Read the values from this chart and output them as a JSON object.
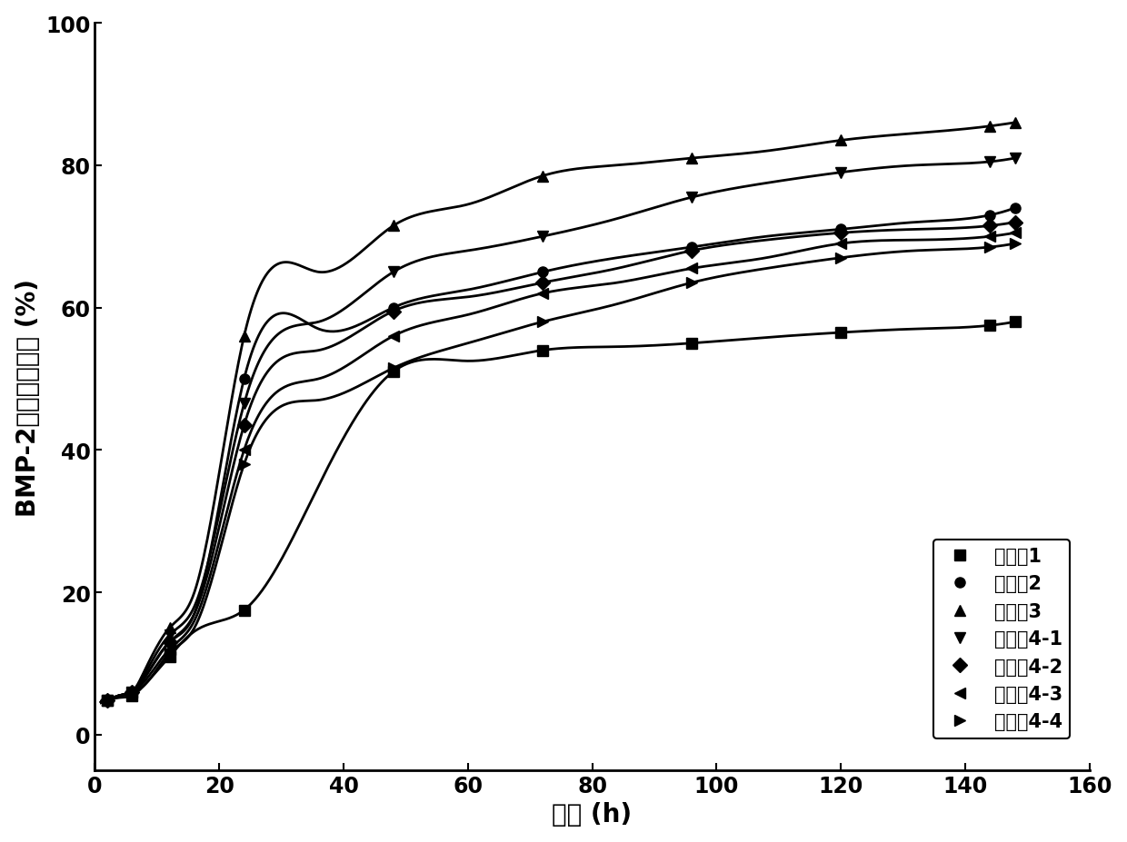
{
  "series": [
    {
      "label": "实施例1",
      "marker": "s",
      "x": [
        1,
        2,
        4,
        6,
        8,
        12,
        16,
        24,
        36,
        48,
        60,
        72,
        84,
        96,
        108,
        120,
        132,
        144,
        148
      ],
      "y": [
        4.5,
        4.8,
        5.2,
        5.5,
        7.0,
        11.0,
        14.5,
        17.5,
        35.0,
        51.0,
        52.5,
        54.0,
        54.5,
        55.0,
        55.8,
        56.5,
        57.0,
        57.5,
        58.0
      ]
    },
    {
      "label": "实施例2",
      "marker": "o",
      "x": [
        1,
        2,
        4,
        6,
        8,
        12,
        16,
        24,
        36,
        48,
        60,
        72,
        84,
        96,
        108,
        120,
        132,
        144,
        148
      ],
      "y": [
        4.5,
        4.8,
        5.5,
        6.0,
        8.0,
        13.0,
        17.0,
        50.0,
        57.0,
        60.0,
        62.5,
        65.0,
        67.0,
        68.5,
        70.0,
        71.0,
        72.0,
        73.0,
        74.0
      ]
    },
    {
      "label": "实施例3",
      "marker": "^",
      "x": [
        1,
        2,
        4,
        6,
        8,
        12,
        16,
        24,
        36,
        48,
        60,
        72,
        84,
        96,
        108,
        120,
        132,
        144,
        148
      ],
      "y": [
        4.5,
        4.8,
        5.5,
        6.0,
        9.0,
        15.0,
        20.0,
        56.0,
        65.0,
        71.5,
        74.5,
        78.5,
        80.0,
        81.0,
        82.0,
        83.5,
        84.5,
        85.5,
        86.0
      ]
    },
    {
      "label": "实施例4-1",
      "marker": "v",
      "x": [
        1,
        2,
        4,
        6,
        8,
        12,
        16,
        24,
        36,
        48,
        60,
        72,
        84,
        96,
        108,
        120,
        132,
        144,
        148
      ],
      "y": [
        4.5,
        4.8,
        5.5,
        6.0,
        8.5,
        14.0,
        18.0,
        46.5,
        58.0,
        65.0,
        68.0,
        70.0,
        72.5,
        75.5,
        77.5,
        79.0,
        80.0,
        80.5,
        81.0
      ]
    },
    {
      "label": "实施例4-2",
      "marker": "D",
      "x": [
        1,
        2,
        4,
        6,
        8,
        12,
        16,
        24,
        36,
        48,
        60,
        72,
        84,
        96,
        108,
        120,
        132,
        144,
        148
      ],
      "y": [
        4.5,
        4.8,
        5.5,
        6.0,
        8.0,
        13.0,
        17.0,
        43.5,
        54.0,
        59.5,
        61.5,
        63.5,
        65.5,
        68.0,
        69.5,
        70.5,
        71.0,
        71.5,
        72.0
      ]
    },
    {
      "label": "实施例4-3",
      "marker": "<",
      "x": [
        1,
        2,
        4,
        6,
        8,
        12,
        16,
        24,
        36,
        48,
        60,
        72,
        84,
        96,
        108,
        120,
        132,
        144,
        148
      ],
      "y": [
        4.5,
        4.8,
        5.5,
        6.0,
        7.5,
        12.0,
        16.0,
        40.0,
        50.0,
        56.0,
        59.0,
        62.0,
        63.5,
        65.5,
        67.0,
        69.0,
        69.5,
        70.0,
        70.5
      ]
    },
    {
      "label": "实施例4-4",
      "marker": ">",
      "x": [
        1,
        2,
        4,
        6,
        8,
        12,
        16,
        24,
        36,
        48,
        60,
        72,
        84,
        96,
        108,
        120,
        132,
        144,
        148
      ],
      "y": [
        4.5,
        4.8,
        5.5,
        6.0,
        7.0,
        11.5,
        15.0,
        38.0,
        47.0,
        51.5,
        55.0,
        58.0,
        60.5,
        63.5,
        65.5,
        67.0,
        68.0,
        68.5,
        69.0
      ]
    }
  ],
  "xlabel": "时间 (h)",
  "ylabel": "BMP-2累积释放曲线 (%)",
  "xlim": [
    0,
    160
  ],
  "ylim": [
    -5,
    100
  ],
  "xticks": [
    0,
    20,
    40,
    60,
    80,
    100,
    120,
    140,
    160
  ],
  "yticks": [
    0,
    20,
    40,
    60,
    80,
    100
  ],
  "color": "#000000",
  "linewidth": 2.0,
  "markersize": 8,
  "font_size_label": 20,
  "font_size_tick": 17,
  "font_size_legend": 15
}
